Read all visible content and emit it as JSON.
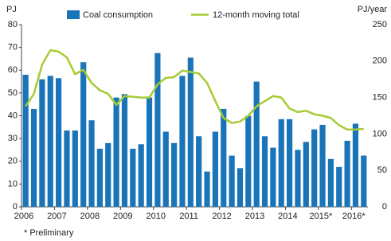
{
  "chart_data": {
    "type": "bar_line",
    "y_label": "PJ",
    "y2_label": "PJ/year",
    "footnote": "* Preliminary",
    "categories": [
      "2006",
      null,
      null,
      null,
      "2007",
      null,
      null,
      null,
      "2008",
      null,
      null,
      null,
      "2009",
      null,
      null,
      null,
      "2010",
      null,
      null,
      null,
      "2011",
      null,
      null,
      null,
      "2012",
      null,
      null,
      null,
      "2013",
      null,
      null,
      null,
      "2014",
      null,
      null,
      null,
      "2015*",
      null,
      null,
      null,
      "2016*",
      null
    ],
    "series": [
      {
        "name": "Coal consumption",
        "type": "bar",
        "color": "#1a75b8",
        "values": [
          58,
          43,
          56,
          57.5,
          56.5,
          33.5,
          33.5,
          63.5,
          38,
          25.5,
          28,
          48,
          49.5,
          25.5,
          27.5,
          48,
          67.5,
          33,
          28,
          57.5,
          65.5,
          31,
          15.5,
          33,
          43,
          22.5,
          17,
          40,
          55,
          31,
          26,
          38.5,
          38.5,
          25,
          28.5,
          34,
          36,
          21,
          17.5,
          29,
          36.5,
          22.5
        ]
      },
      {
        "name": "12-month moving total",
        "type": "line",
        "axis": "y2",
        "color": "#a6cc33",
        "values": [
          138,
          155,
          195,
          215,
          213,
          205,
          182,
          188,
          170,
          160,
          155,
          140,
          152,
          151,
          150,
          150,
          168,
          177,
          178,
          187,
          185,
          183,
          170,
          145,
          122,
          115,
          117,
          125,
          138,
          145,
          152,
          150,
          135,
          130,
          132,
          127,
          125,
          122,
          112,
          106,
          106,
          107
        ]
      }
    ],
    "ylim": [
      0,
      80
    ],
    "yticks": [
      0,
      10,
      20,
      30,
      40,
      50,
      60,
      70,
      80
    ],
    "y2lim": [
      0,
      250
    ],
    "y2ticks": [
      0,
      50,
      100,
      150,
      200,
      250
    ],
    "grid": false
  }
}
